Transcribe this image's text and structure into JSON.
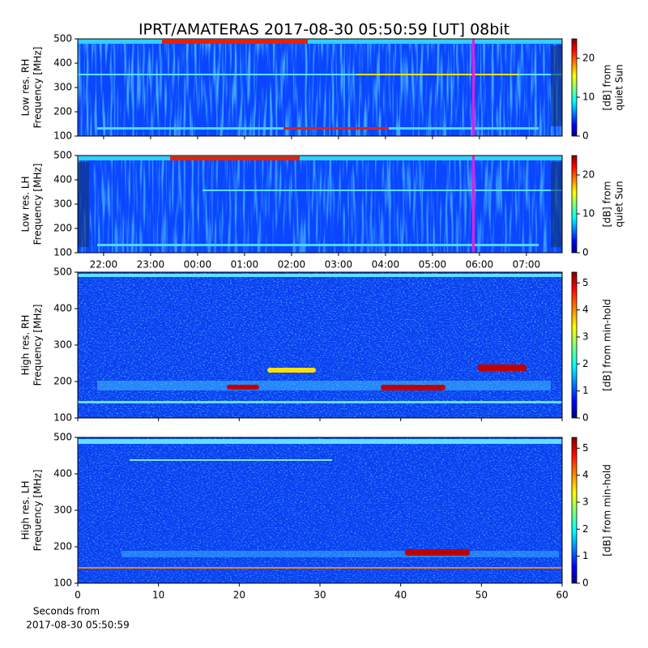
{
  "chart_data": [
    {
      "type": "heatmap",
      "title": "IPRT/AMATERAS 2017-08-30 05:50:59 [UT]   08bit",
      "ylabel": [
        "Low res. RH",
        "Frequency [MHz]"
      ],
      "ylim": [
        100,
        500
      ],
      "yticks": [
        100,
        200,
        300,
        400,
        500
      ],
      "colorbar_label": [
        "[dB] from",
        "quiet Sun"
      ],
      "clim": [
        0,
        25
      ],
      "cticks": [
        0,
        10,
        20
      ],
      "colormap": "jet"
    },
    {
      "type": "heatmap",
      "ylabel": [
        "Low res. LH",
        "Frequency [MHz]"
      ],
      "ylim": [
        100,
        500
      ],
      "yticks": [
        100,
        200,
        300,
        400,
        500
      ],
      "colorbar_label": [
        "[dB] from",
        "quiet Sun"
      ],
      "clim": [
        0,
        25
      ],
      "cticks": [
        0,
        10,
        20
      ],
      "colormap": "jet",
      "xlim": [
        21.45,
        31.76
      ],
      "xticks": [
        {
          "value": 22,
          "label": "22:00"
        },
        {
          "value": 23,
          "label": "23:00"
        },
        {
          "value": 24,
          "label": "00:00"
        },
        {
          "value": 25,
          "label": "01:00"
        },
        {
          "value": 26,
          "label": "02:00"
        },
        {
          "value": 27,
          "label": "03:00"
        },
        {
          "value": 28,
          "label": "04:00"
        },
        {
          "value": 29,
          "label": "05:00"
        },
        {
          "value": 30,
          "label": "06:00"
        },
        {
          "value": 31,
          "label": "07:00"
        }
      ]
    },
    {
      "type": "heatmap",
      "ylabel": [
        "High res. RH",
        "Frequency [MHz]"
      ],
      "ylim": [
        100,
        500
      ],
      "yticks": [
        100,
        200,
        300,
        400,
        500
      ],
      "colorbar_label": [
        "[dB] from min-hold"
      ],
      "clim": [
        0,
        5.4
      ],
      "cticks": [
        0,
        1,
        2,
        3,
        4,
        5
      ],
      "colormap": "jet"
    },
    {
      "type": "heatmap",
      "ylabel": [
        "High res. LH",
        "Frequency [MHz]"
      ],
      "ylim": [
        100,
        500
      ],
      "yticks": [
        100,
        200,
        300,
        400,
        500
      ],
      "colorbar_label": [
        "[dB] from min-hold"
      ],
      "clim": [
        0,
        5.4
      ],
      "cticks": [
        0,
        1,
        2,
        3,
        4,
        5
      ],
      "colormap": "jet",
      "xlim": [
        0,
        60
      ],
      "xticks": [
        0,
        10,
        20,
        30,
        40,
        50,
        60
      ],
      "xlabel": [
        "Seconds from",
        "2017-08-30 05:50:59"
      ]
    }
  ]
}
